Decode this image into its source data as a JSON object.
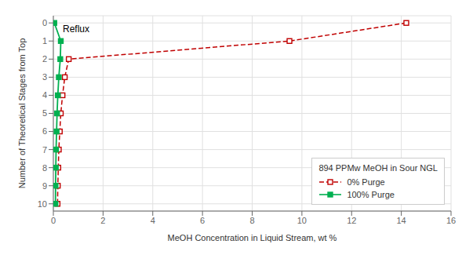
{
  "chart_data": {
    "type": "line",
    "title": "",
    "xlabel": "MeOH Concentration in Liquid Stream, wt %",
    "ylabel": "Number of Theoretical Stages from Top",
    "annotation": "Reflux",
    "legend_title": "894 PPMw MeOH in Sour NGL",
    "legend": "lower right",
    "grid": true,
    "xlim": [
      0,
      16
    ],
    "ylim": [
      10.4,
      -0.4
    ],
    "xticks": [
      0,
      2,
      4,
      6,
      8,
      10,
      12,
      14,
      16
    ],
    "yticks": [
      0,
      1,
      2,
      3,
      4,
      5,
      6,
      7,
      8,
      9,
      10
    ],
    "series": [
      {
        "name": "0% Purge",
        "color": "#c00000",
        "marker": "open_square",
        "line_style": "dashed",
        "x": [
          14.2,
          9.5,
          0.62,
          0.46,
          0.37,
          0.3,
          0.26,
          0.22,
          0.2,
          0.18,
          0.17
        ],
        "values": [
          0,
          1,
          2,
          3,
          4,
          5,
          6,
          7,
          8,
          9,
          10
        ]
      },
      {
        "name": "100% Purge",
        "color": "#00b050",
        "marker": "square",
        "line_style": "solid",
        "x": [
          0.04,
          0.3,
          0.28,
          0.22,
          0.18,
          0.15,
          0.13,
          0.11,
          0.1,
          0.09,
          0.085
        ],
        "values": [
          0,
          1,
          2,
          3,
          4,
          5,
          6,
          7,
          8,
          9,
          10
        ]
      }
    ]
  }
}
